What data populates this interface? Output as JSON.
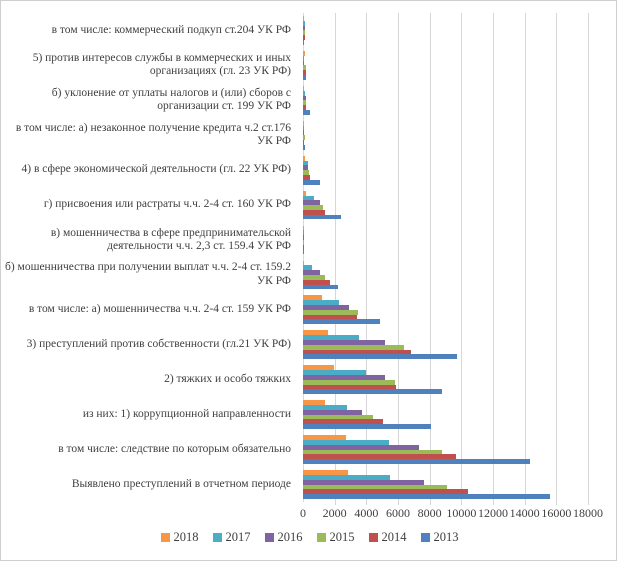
{
  "chart_data": {
    "type": "bar",
    "orientation": "horizontal",
    "title": "",
    "xlabel": "",
    "ylabel": "",
    "xlim": [
      0,
      18000
    ],
    "x_ticks": [
      0,
      2000,
      4000,
      6000,
      8000,
      10000,
      12000,
      14000,
      16000,
      18000
    ],
    "grid": true,
    "legend_position": "bottom",
    "categories": [
      "в том числе: коммерческий подкуп ст.204 УК РФ",
      "5) против интересов службы в коммерческих и иных организациях (гл. 23 УК РФ)",
      "б) уклонение от уплаты налогов и (или) сборов с организации ст. 199 УК РФ",
      "в том числе: а) незаконное получение кредита ч.2 ст.176 УК РФ",
      "4) в сфере экономической деятельности (гл. 22 УК РФ)",
      "г) присвоения или растраты ч.ч. 2-4 ст. 160 УК РФ",
      "в) мошенничества в сфере предпринимательской деятельности ч.ч. 2,3 ст. 159.4 УК РФ",
      "б) мошенничества при получении выплат ч.ч. 2-4 ст. 159.2 УК РФ",
      "в том числе: а) мошенничества ч.ч. 2-4 ст. 159 УК РФ",
      "3) преступлений против собственности (гл.21 УК РФ)",
      "2) тяжких и особо тяжких",
      "из них: 1) коррупционной направленности",
      "в том числе: следствие по которым обязательно",
      "Выявлено преступлений в отчетном периоде"
    ],
    "series": [
      {
        "name": "2018",
        "color": "#F79646",
        "values": [
          60,
          130,
          60,
          15,
          130,
          180,
          10,
          90,
          1200,
          1550,
          1950,
          1400,
          2700,
          2860
        ]
      },
      {
        "name": "2017",
        "color": "#4BACC6",
        "values": [
          100,
          60,
          110,
          20,
          340,
          700,
          60,
          550,
          2250,
          3550,
          4000,
          2800,
          5400,
          5520
        ]
      },
      {
        "name": "2016",
        "color": "#8064A2",
        "values": [
          100,
          90,
          190,
          25,
          300,
          1050,
          60,
          1070,
          2900,
          5150,
          5200,
          3730,
          7350,
          7660
        ]
      },
      {
        "name": "2015",
        "color": "#9BBB59",
        "values": [
          130,
          190,
          170,
          110,
          400,
          1280,
          80,
          1360,
          3470,
          6350,
          5800,
          4420,
          8760,
          9120
        ]
      },
      {
        "name": "2014",
        "color": "#C0504D",
        "values": [
          130,
          210,
          170,
          25,
          440,
          1400,
          80,
          1700,
          3390,
          6850,
          5870,
          5070,
          9660,
          10400
        ]
      },
      {
        "name": "2013",
        "color": "#4F81BD",
        "values": [
          60,
          190,
          420,
          110,
          1100,
          2400,
          50,
          2200,
          4880,
          9730,
          8760,
          8100,
          14360,
          15620
        ]
      }
    ],
    "colors": {
      "gridline": "#d6d6d6",
      "text": "#3f3f3f"
    }
  }
}
